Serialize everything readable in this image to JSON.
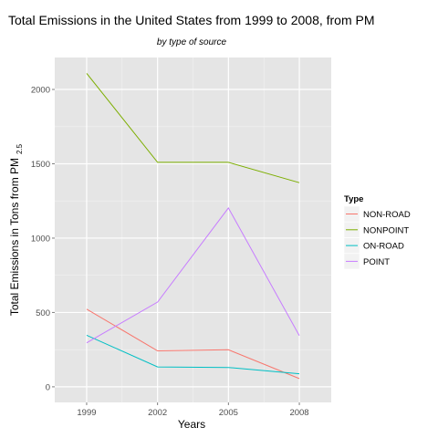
{
  "chart_data": {
    "type": "line",
    "title": "Total Emissions in the United States from 1999 to 2008, from PM",
    "subtitle": "by type of source",
    "xlabel": "Years",
    "ylabel": "Total Emissions in Tons from PM",
    "ylabel_subscript": "2.5",
    "x": [
      1999,
      2002,
      2005,
      2008
    ],
    "xlim": [
      1997.65,
      2009.35
    ],
    "ylim": [
      -105,
      2215
    ],
    "yticks": [
      0,
      500,
      1000,
      1500,
      2000
    ],
    "grid": true,
    "legend": {
      "title": "Type",
      "placement": "right"
    },
    "series": [
      {
        "name": "NON-ROAD",
        "color": "#F8766D",
        "values": [
          522,
          242,
          249,
          55
        ]
      },
      {
        "name": "NONPOINT",
        "color": "#7CAE00",
        "values": [
          2108,
          1510,
          1510,
          1373
        ]
      },
      {
        "name": "ON-ROAD",
        "color": "#00BFC4",
        "values": [
          347,
          134,
          130,
          88
        ]
      },
      {
        "name": "POINT",
        "color": "#C77CFF",
        "values": [
          296,
          570,
          1203,
          345
        ]
      }
    ]
  }
}
